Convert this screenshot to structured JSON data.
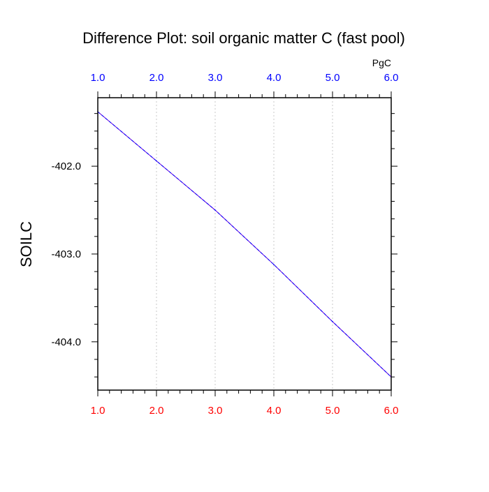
{
  "chart_data": {
    "type": "line",
    "title": "Difference Plot: soil organic matter C (fast pool)",
    "units": "PgC",
    "ylabel": "SOILC",
    "xlim": [
      1.0,
      6.0
    ],
    "ylim": [
      -404.55,
      -401.22
    ],
    "x_ticks": [
      1.0,
      2.0,
      3.0,
      4.0,
      5.0,
      6.0
    ],
    "x_tick_labels": [
      "1.0",
      "2.0",
      "3.0",
      "4.0",
      "5.0",
      "6.0"
    ],
    "y_ticks": [
      -402.0,
      -403.0,
      -404.0
    ],
    "y_tick_labels": [
      "-402.0",
      "-403.0",
      "-404.0"
    ],
    "grid": "vertical dotted",
    "series": [
      {
        "x": [
          1.0,
          2.0,
          3.0,
          4.0,
          5.0,
          6.0
        ],
        "values": [
          -401.38,
          -401.94,
          -402.5,
          -403.12,
          -403.77,
          -404.4
        ],
        "colors": [
          "#6a00d8",
          "#0000ff"
        ]
      }
    ],
    "colors": {
      "top_axis_labels": "#0000ff",
      "bottom_axis_labels": "#ff0000",
      "grid": "#c8c8c8"
    }
  }
}
